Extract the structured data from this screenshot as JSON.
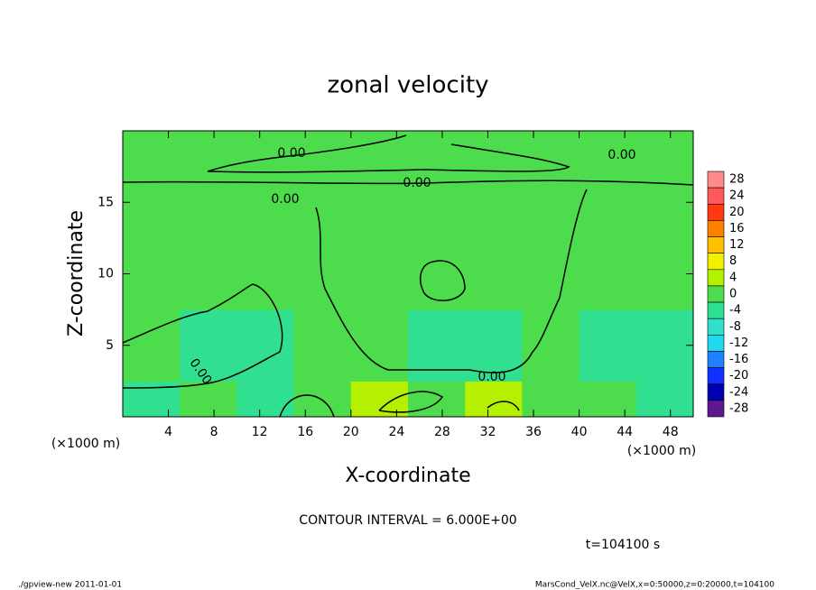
{
  "chart_data": {
    "type": "contour",
    "title": "zonal velocity",
    "x_label": "X-coordinate",
    "y_label": "Z-coordinate",
    "x_unit": "(×1000 m)",
    "y_unit": "(×1000 m)",
    "xlim": [
      0,
      50
    ],
    "ylim": [
      0,
      20
    ],
    "xticks": [
      4,
      8,
      12,
      16,
      20,
      24,
      28,
      32,
      36,
      40,
      44,
      48
    ],
    "yticks": [
      5,
      10,
      15
    ],
    "xbins": [
      0,
      5,
      10,
      15,
      20,
      25,
      30,
      35,
      40,
      45,
      50
    ],
    "zbins": [
      0,
      2.5,
      5,
      7.5,
      10,
      12.5,
      15,
      17.5,
      20
    ],
    "values": [
      [
        -3,
        -2,
        -6,
        -1,
        5,
        1,
        3,
        -1,
        -2,
        -3
      ],
      [
        -2,
        -3,
        -4,
        -1,
        -1,
        -3,
        -4,
        -2,
        -5,
        -4
      ],
      [
        -2,
        -3,
        -4,
        -1,
        0,
        -3,
        -3,
        -2,
        -3,
        -3
      ],
      [
        0,
        0,
        -1,
        0,
        0,
        -2,
        -1,
        0,
        0,
        0
      ],
      [
        0,
        0,
        0,
        0,
        0,
        -1,
        0,
        0,
        0,
        0
      ],
      [
        0,
        0,
        0,
        0,
        0,
        0,
        0,
        0,
        0,
        0
      ],
      [
        1,
        1,
        1,
        1,
        1,
        1,
        1,
        1,
        1,
        1
      ],
      [
        1,
        1,
        1,
        1,
        1,
        1,
        1,
        1,
        1,
        1
      ]
    ],
    "contour_labels": [
      "0.00",
      "0.00",
      "0.00",
      "0.00",
      "0.00",
      "0.00"
    ],
    "colorbar": {
      "levels": [
        28,
        24,
        20,
        16,
        12,
        8,
        4,
        0,
        -4,
        -8,
        -12,
        -16,
        -20,
        -24,
        -28
      ],
      "colors": [
        "#ff8a8a",
        "#ff5a5a",
        "#ff3a10",
        "#ff8000",
        "#ffc000",
        "#f0f000",
        "#b4f000",
        "#4cdc4c",
        "#30e090",
        "#30e0c8",
        "#20d8f0",
        "#2080ff",
        "#1030ff",
        "#0000b0",
        "#601890"
      ]
    },
    "annotation": "CONTOUR INTERVAL = 6.000E+00",
    "time_label": "t=104100 s",
    "footer_left": "./gpview-new  2011-01-01",
    "footer_right": "MarsCond_VelX.nc@VelX,x=0:50000,z=0:20000,t=104100"
  }
}
